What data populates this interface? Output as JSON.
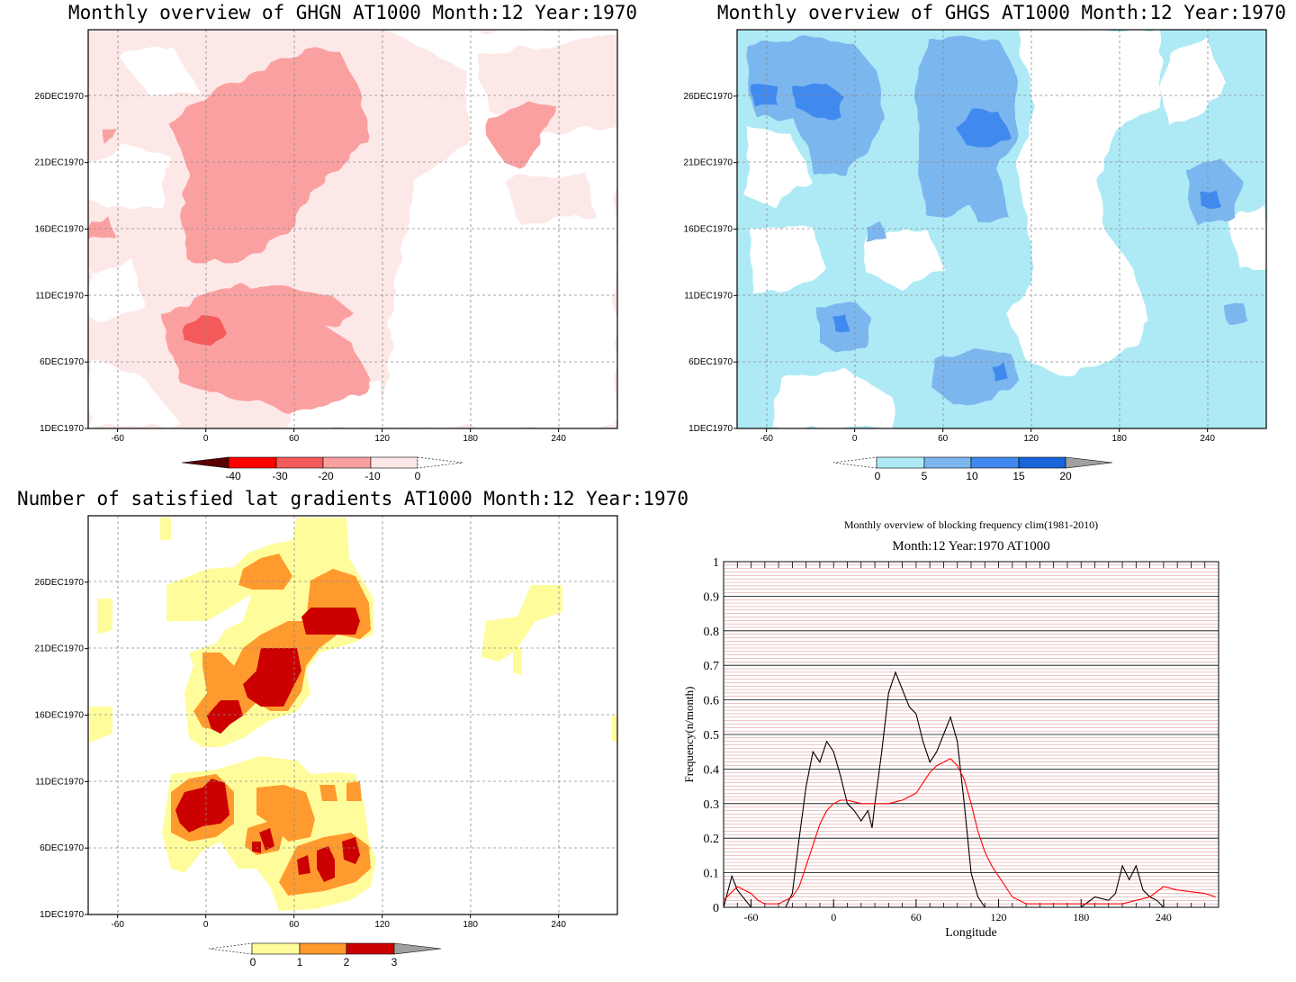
{
  "panels": [
    {
      "id": "ghgn",
      "title": "Monthly overview of GHGN AT1000 Month:12 Year:1970",
      "x_ticks": [
        "-60",
        "0",
        "60",
        "120",
        "180",
        "240"
      ],
      "y_ticks": [
        "1DEC1970",
        "6DEC1970",
        "11DEC1970",
        "16DEC1970",
        "21DEC1970",
        "26DEC1970"
      ],
      "colorbar": {
        "labels": [
          "-40",
          "-30",
          "-20",
          "-10",
          "0"
        ],
        "colors": [
          "#5a0000",
          "#ff0000",
          "#f45a5a",
          "#fba0a0",
          "#fde8e8"
        ]
      }
    },
    {
      "id": "ghgs",
      "title": "Monthly overview of GHGS AT1000 Month:12 Year:1970",
      "x_ticks": [
        "-60",
        "0",
        "60",
        "120",
        "180",
        "240"
      ],
      "y_ticks": [
        "1DEC1970",
        "6DEC1970",
        "11DEC1970",
        "16DEC1970",
        "21DEC1970",
        "26DEC1970"
      ],
      "colorbar": {
        "labels": [
          "0",
          "5",
          "10",
          "15",
          "20"
        ],
        "colors": [
          "#aeeaf5",
          "#7cb6ef",
          "#3f89ee",
          "#1864d9",
          "#a0a0a0"
        ]
      }
    },
    {
      "id": "gradients",
      "title": "Number of satisfied lat gradients AT1000 Month:12 Year:1970",
      "x_ticks": [
        "-60",
        "0",
        "60",
        "120",
        "180",
        "240"
      ],
      "y_ticks": [
        "1DEC1970",
        "6DEC1970",
        "11DEC1970",
        "16DEC1970",
        "21DEC1970",
        "26DEC1970"
      ],
      "colorbar": {
        "labels": [
          "0",
          "1",
          "2",
          "3"
        ],
        "colors": [
          "#fffc9c",
          "#ff9a2e",
          "#cc0000",
          "#a0a0a0"
        ]
      }
    }
  ],
  "frequency_chart": {
    "title": "Monthly overview of blocking frequency clim(1981-2010)",
    "subtitle": "Month:12 Year:1970  AT1000",
    "xlabel": "Longitude",
    "ylabel": "Frequency(n/month)",
    "x_ticks": [
      "-60",
      "0",
      "60",
      "120",
      "180",
      "240"
    ],
    "y_ticks": [
      "0",
      "0.1",
      "0.2",
      "0.3",
      "0.4",
      "0.5",
      "0.6",
      "0.7",
      "0.8",
      "0.9",
      "1"
    ],
    "chart_data": {
      "type": "line",
      "xlim": [
        -80,
        280
      ],
      "ylim": [
        0,
        1
      ],
      "series": [
        {
          "color": "#000000",
          "x": [
            -80,
            -74,
            -70,
            -64,
            -60,
            -50,
            -40,
            -35,
            -30,
            -25,
            -20,
            -15,
            -10,
            -5,
            0,
            5,
            10,
            15,
            20,
            25,
            28,
            30,
            35,
            40,
            45,
            50,
            55,
            60,
            65,
            70,
            75,
            80,
            85,
            90,
            95,
            100,
            105,
            110,
            115,
            120,
            140,
            180,
            190,
            200,
            205,
            210,
            215,
            220,
            225,
            230,
            235,
            240,
            250,
            270,
            280
          ],
          "y": [
            0.0,
            0.09,
            0.05,
            0.02,
            0.0,
            0.0,
            0.0,
            0.0,
            0.04,
            0.2,
            0.35,
            0.45,
            0.42,
            0.48,
            0.45,
            0.38,
            0.3,
            0.28,
            0.25,
            0.28,
            0.23,
            0.3,
            0.45,
            0.62,
            0.68,
            0.63,
            0.58,
            0.56,
            0.48,
            0.42,
            0.45,
            0.5,
            0.55,
            0.48,
            0.3,
            0.1,
            0.03,
            0.0,
            0.0,
            0.0,
            0.0,
            0.0,
            0.03,
            0.02,
            0.04,
            0.12,
            0.08,
            0.12,
            0.05,
            0.03,
            0.02,
            0.0,
            0.0,
            0.0,
            0.0
          ]
        },
        {
          "color": "#ff0000",
          "x": [
            -80,
            -75,
            -70,
            -65,
            -60,
            -55,
            -50,
            -45,
            -40,
            -35,
            -30,
            -25,
            -20,
            -15,
            -10,
            -5,
            0,
            5,
            10,
            20,
            30,
            40,
            50,
            60,
            65,
            70,
            75,
            80,
            85,
            90,
            95,
            100,
            105,
            110,
            115,
            120,
            125,
            130,
            140,
            150,
            160,
            180,
            200,
            210,
            220,
            230,
            240,
            250,
            260,
            270,
            278
          ],
          "y": [
            0.02,
            0.04,
            0.06,
            0.05,
            0.04,
            0.02,
            0.01,
            0.01,
            0.01,
            0.02,
            0.03,
            0.06,
            0.12,
            0.18,
            0.24,
            0.28,
            0.3,
            0.31,
            0.31,
            0.3,
            0.3,
            0.3,
            0.31,
            0.33,
            0.36,
            0.39,
            0.41,
            0.42,
            0.43,
            0.41,
            0.37,
            0.3,
            0.22,
            0.16,
            0.12,
            0.09,
            0.06,
            0.03,
            0.01,
            0.01,
            0.01,
            0.01,
            0.01,
            0.01,
            0.02,
            0.03,
            0.06,
            0.05,
            0.045,
            0.04,
            0.03
          ]
        }
      ]
    }
  }
}
